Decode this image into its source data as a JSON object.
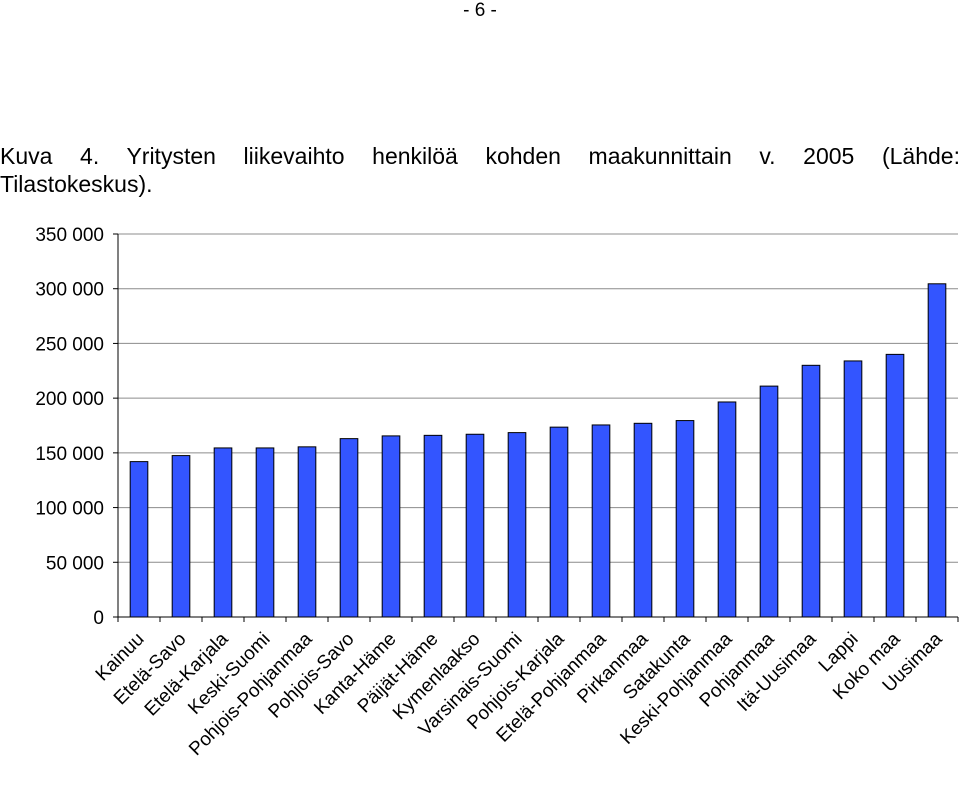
{
  "page": {
    "number": "- 6 -"
  },
  "caption": {
    "line1": "Kuva 4. Yritysten liikevaihto henkilöä kohden maakunnittain v. 2005 (Lähde:",
    "line2": "Tilastokeskus)."
  },
  "chart_data": {
    "type": "bar",
    "categories": [
      "Kainuu",
      "Etelä-Savo",
      "Etelä-Karjala",
      "Keski-Suomi",
      "Pohjois-Pohjanmaa",
      "Pohjois-Savo",
      "Kanta-Häme",
      "Päijät-Häme",
      "Kymenlaakso",
      "Varsinais-Suomi",
      "Pohjois-Karjala",
      "Etelä-Pohjanmaa",
      "Pirkanmaa",
      "Satakunta",
      "Keski-Pohjanmaa",
      "Pohjanmaa",
      "Itä-Uusimaa",
      "Lappi",
      "Koko maa",
      "Uusimaa"
    ],
    "values": [
      142000,
      147500,
      154500,
      154500,
      155500,
      163000,
      165500,
      166000,
      167000,
      168500,
      173500,
      175500,
      177000,
      179500,
      196500,
      211000,
      230000,
      234000,
      240000,
      304500
    ],
    "ylim": [
      0,
      350000
    ],
    "yticks": [
      0,
      50000,
      100000,
      150000,
      200000,
      250000,
      300000,
      350000
    ],
    "ytick_labels": [
      "0",
      "50 000",
      "100 000",
      "150 000",
      "200 000",
      "250 000",
      "300 000",
      "350 000"
    ],
    "grid": true,
    "bar_color": "#3355ff",
    "title": "",
    "xlabel": "",
    "ylabel": ""
  }
}
